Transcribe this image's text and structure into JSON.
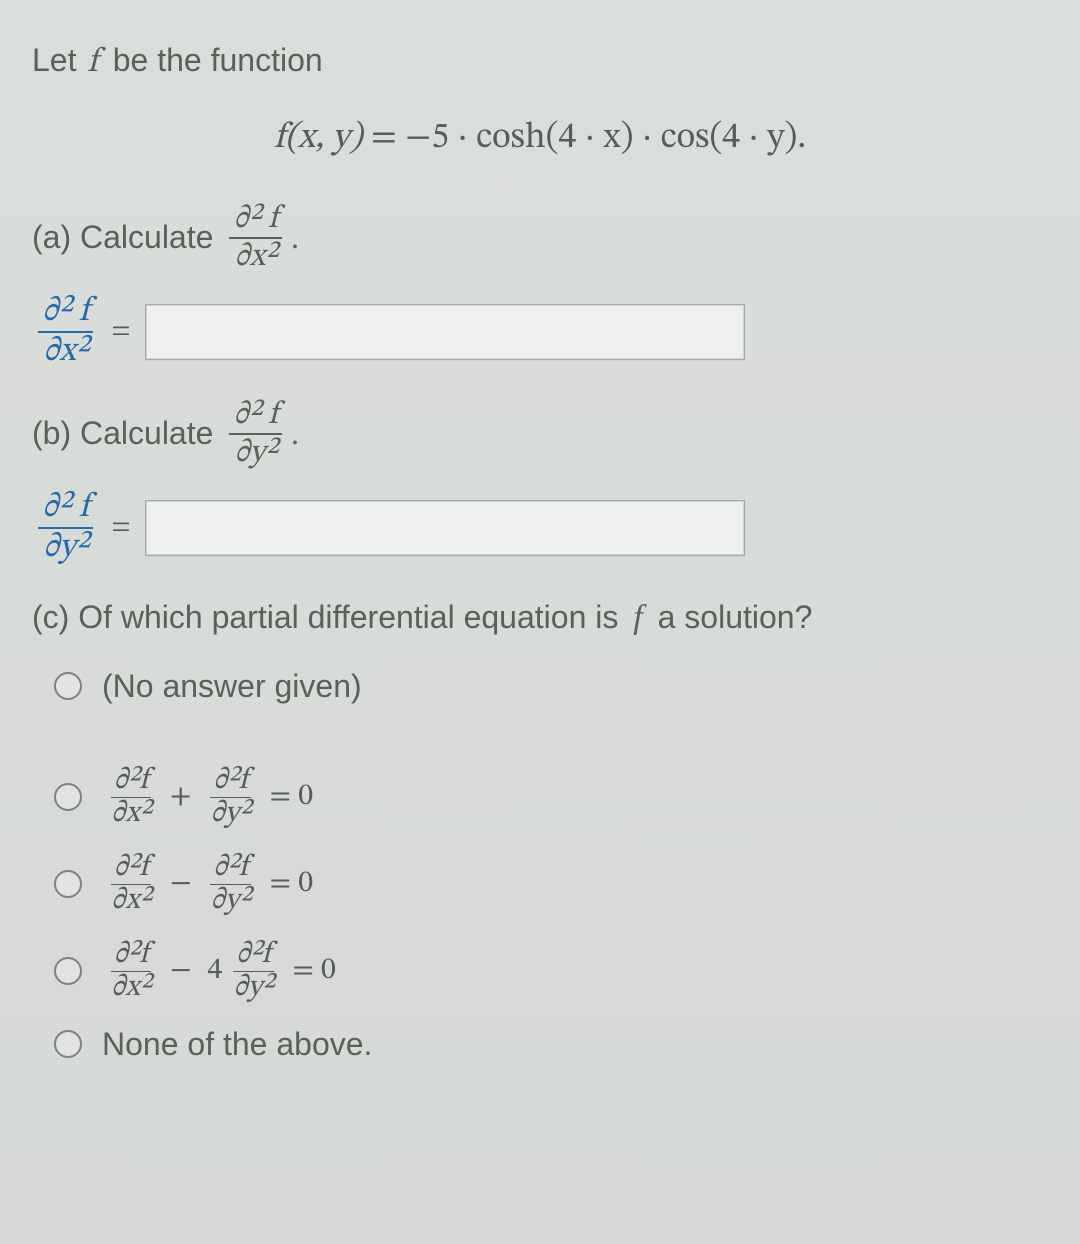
{
  "colors": {
    "page_bg": "#d8dbd8",
    "text": "#5a605a",
    "math_text": "#585c58",
    "accent_math": "#2a68a8",
    "input_bg": "#eef0ee",
    "input_border": "#a6aaa6",
    "radio_border": "#7e837e"
  },
  "fonts": {
    "body": "Segoe UI, Arial, sans-serif",
    "math": "Cambria Math, STIX Two Math, Georgia, serif",
    "body_size_pt": 24,
    "equation_size_pt": 27,
    "option_size_pt": 24
  },
  "intro": {
    "prefix": "Let ",
    "symbol": "f",
    "suffix": " be the function"
  },
  "equation": {
    "lhs": "f(x, y)",
    "eq": " = ",
    "rhs": "−5 · cosh(4 · x) · cos(4 · y)."
  },
  "part_a": {
    "label": "(a) Calculate ",
    "frac_num": "∂² f",
    "frac_den": "∂x²",
    "punct": ".",
    "lhs_num": "∂² f",
    "lhs_den": "∂x²",
    "value": ""
  },
  "part_b": {
    "label": "(b) Calculate ",
    "frac_num": "∂² f",
    "frac_den": "∂y²",
    "punct": ".",
    "lhs_num": "∂² f",
    "lhs_den": "∂y²",
    "value": ""
  },
  "part_c": {
    "prefix": "(c) Of which partial differential equation is ",
    "symbol": "f",
    "suffix": " a solution?"
  },
  "options": {
    "o0": {
      "text": "(No answer given)"
    },
    "o1": {
      "t1n": "∂²f",
      "t1d": "∂x²",
      "op": "+",
      "t2n": "∂²f",
      "t2d": "∂y²",
      "rhs": "= 0"
    },
    "o2": {
      "t1n": "∂²f",
      "t1d": "∂x²",
      "op": "−",
      "t2n": "∂²f",
      "t2d": "∂y²",
      "rhs": "= 0"
    },
    "o3": {
      "t1n": "∂²f",
      "t1d": "∂x²",
      "op": "−",
      "coef": "4",
      "t2n": "∂²f",
      "t2d": "∂y²",
      "rhs": "= 0"
    },
    "o4": {
      "text": "None of the above."
    }
  }
}
